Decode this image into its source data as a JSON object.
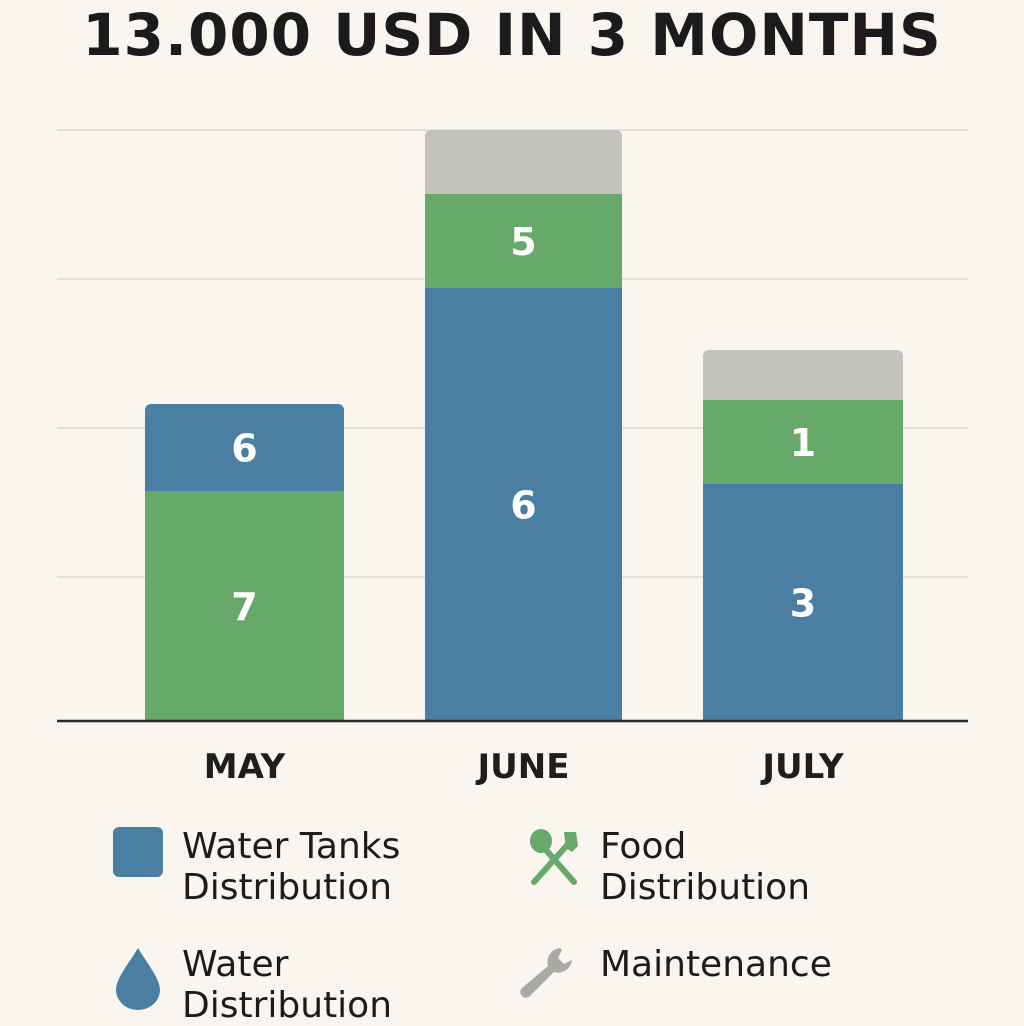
{
  "chart_data": {
    "type": "bar",
    "stacked": true,
    "title": "13.000 USD IN 3 MONTHS",
    "categories": [
      "MAY",
      "JUNE",
      "JULY"
    ],
    "series": [
      {
        "name": "Water Tanks Distribution",
        "color": "#4a7ea3",
        "values": [
          null,
          6,
          3
        ]
      },
      {
        "name": "Food Distribution",
        "color": "#66a96a",
        "values": [
          7,
          5,
          1
        ]
      },
      {
        "name": "Water Distribution",
        "color": "#4a7ea3",
        "values": [
          6,
          null,
          null
        ]
      },
      {
        "name": "Maintenance",
        "color": "#c3c2bc",
        "values": [
          null,
          null,
          null
        ]
      }
    ],
    "stack_order": [
      [
        "Food Distribution",
        "Water Distribution"
      ],
      [
        "Water Tanks Distribution",
        "Food Distribution",
        "Maintenance"
      ],
      [
        "Water Tanks Distribution",
        "Food Distribution",
        "Maintenance"
      ]
    ],
    "grid": true,
    "legend_position": "bottom"
  },
  "legend": [
    {
      "label": "Water Tanks\nDistribution",
      "icon": "square-icon",
      "color": "#4a7ea3"
    },
    {
      "label": "Food\nDistribution",
      "icon": "fork-knife-icon",
      "color": "#66a96a"
    },
    {
      "label": "Water\nDistribution",
      "icon": "water-drop-icon",
      "color": "#4a7ea3"
    },
    {
      "label": "Maintenance",
      "icon": "wrench-icon",
      "color": "#a9a9a5"
    }
  ]
}
